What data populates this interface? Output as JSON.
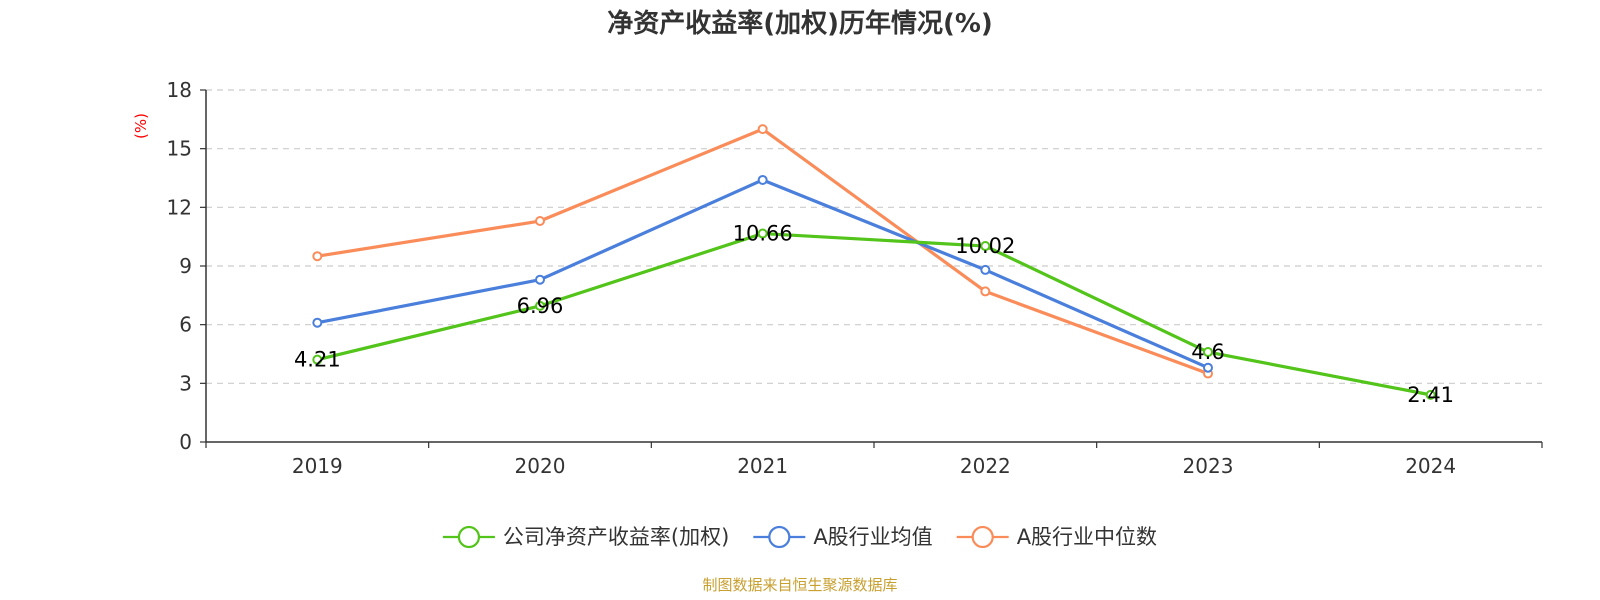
{
  "chart_data": {
    "type": "line",
    "title": "净资产收益率(加权)历年情况(%)",
    "ylabel": "(%)",
    "xlabel": "",
    "categories": [
      "2019",
      "2020",
      "2021",
      "2022",
      "2023",
      "2024"
    ],
    "ylim": [
      0,
      18
    ],
    "yticks": [
      0,
      3,
      6,
      9,
      12,
      15,
      18
    ],
    "grid": true,
    "legend_position": "bottom-center",
    "series": [
      {
        "name": "公司净资产收益率(加权)",
        "color": "#52c41a",
        "values": [
          4.21,
          6.96,
          10.66,
          10.02,
          4.6,
          2.41
        ],
        "data_labels": [
          "4.21",
          "6.96",
          "10.66",
          "10.02",
          "4.6",
          "2.41"
        ]
      },
      {
        "name": "A股行业均值",
        "color": "#4a7fdc",
        "values": [
          6.1,
          8.3,
          13.4,
          8.8,
          3.8,
          null
        ]
      },
      {
        "name": "A股行业中位数",
        "color": "#fa8c5a",
        "values": [
          9.5,
          11.3,
          16.0,
          7.7,
          3.5,
          null
        ]
      }
    ],
    "source": "制图数据来自恒生聚源数据库",
    "colors": {
      "axis": "#333333",
      "grid": "#cccccc",
      "unit_label": "#ff0000",
      "source": "#c8a030"
    }
  }
}
